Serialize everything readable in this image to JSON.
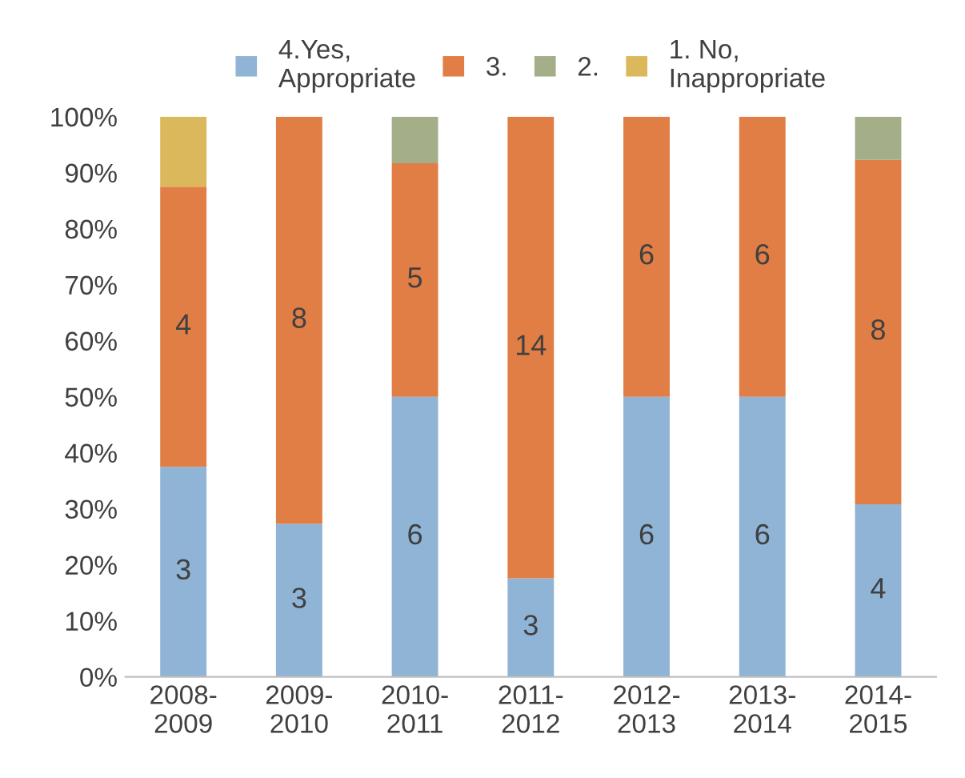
{
  "chart_data": {
    "type": "bar",
    "stacked": true,
    "categories": [
      "2008-\n2009",
      "2009-\n2010",
      "2010-\n2011",
      "2011-\n2012",
      "2012-\n2013",
      "2013-\n2014",
      "2014-\n2015"
    ],
    "series": [
      {
        "name": "4.Yes,\nAppropriate",
        "color": "#8fb4d6",
        "values": [
          37.5,
          27.3,
          50,
          17.6,
          50,
          50,
          30.8
        ]
      },
      {
        "name": "3.",
        "color": "#e07e45",
        "values": [
          50,
          72.7,
          41.7,
          82.4,
          50,
          50,
          61.5
        ]
      },
      {
        "name": "2.",
        "color": "#a4ae88",
        "values": [
          null,
          null,
          8.3,
          null,
          null,
          null,
          7.7
        ]
      },
      {
        "name": "1. No,\nInappropriate",
        "color": "#dcb85c",
        "values": [
          12.5,
          null,
          null,
          null,
          null,
          null,
          null
        ]
      }
    ],
    "annotations": [
      "3",
      "3",
      "6",
      "3",
      "6",
      "6",
      "4",
      "4",
      "8",
      "5",
      "14",
      "6",
      "6",
      "8"
    ],
    "ylim": [
      0,
      100
    ],
    "yticks": [
      {
        "value": 0,
        "label": "0%"
      },
      {
        "value": 10,
        "label": "10%"
      },
      {
        "value": 20,
        "label": "20%"
      },
      {
        "value": 30,
        "label": "30%"
      },
      {
        "value": 40,
        "label": "40%"
      },
      {
        "value": 50,
        "label": "50%"
      },
      {
        "value": 60,
        "label": "60%"
      },
      {
        "value": 70,
        "label": "70%"
      },
      {
        "value": 80,
        "label": "80%"
      },
      {
        "value": 90,
        "label": "90%"
      },
      {
        "value": 100,
        "label": "100%"
      }
    ],
    "legend": "top",
    "grid": false
  }
}
